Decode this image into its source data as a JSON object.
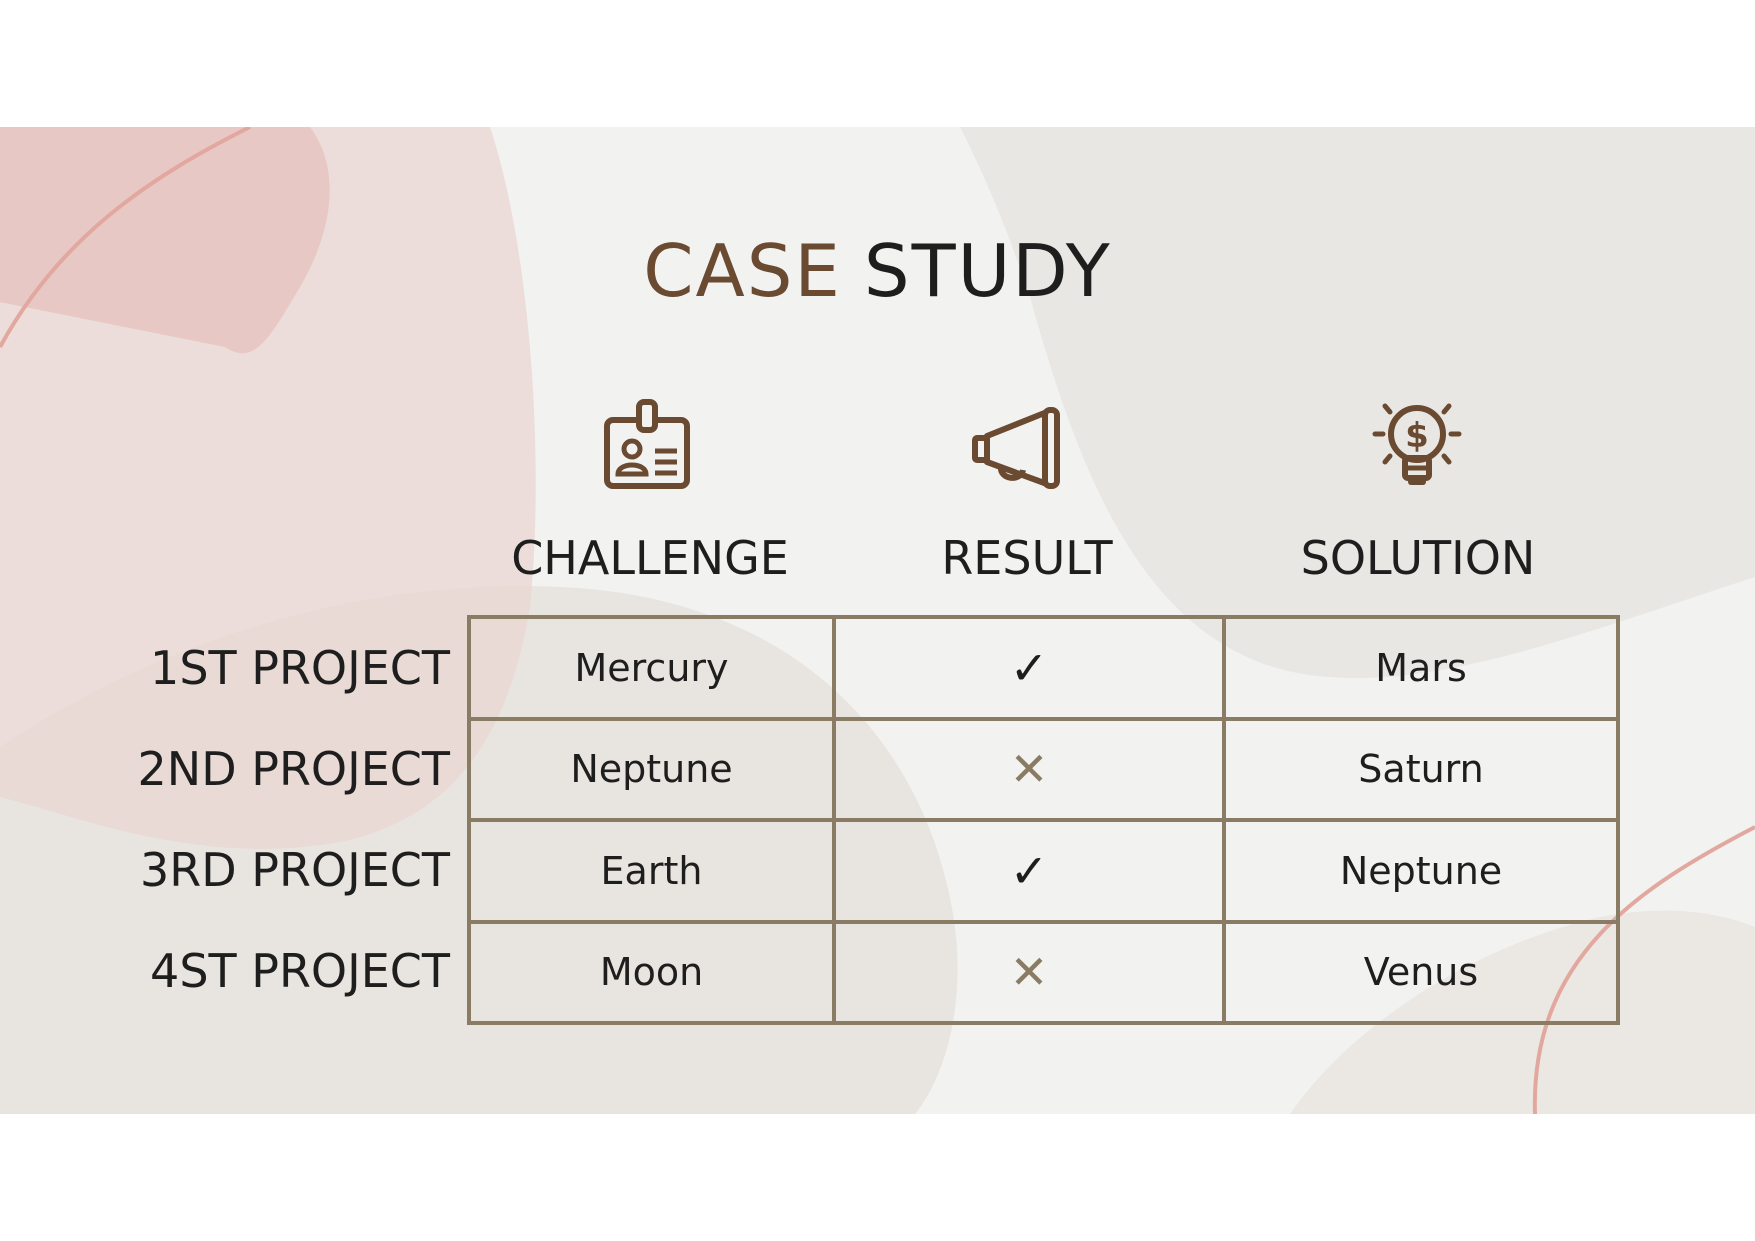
{
  "title": {
    "part1": "CASE",
    "part2": "STUDY"
  },
  "colors": {
    "accent_brown": "#6b4a32",
    "grid_line": "#8a7c64",
    "pink_shape": "#e9cfca",
    "pink_line": "#e2a89f",
    "beige_shape": "#e6e3de"
  },
  "columns": [
    {
      "icon": "id-badge-icon",
      "label": "CHALLENGE"
    },
    {
      "icon": "megaphone-icon",
      "label": "RESULT"
    },
    {
      "icon": "lightbulb-dollar-icon",
      "label": "SOLUTION"
    }
  ],
  "rows": [
    {
      "label": "1ST PROJECT",
      "challenge": "Mercury",
      "result": "check",
      "result_glyph": "✓",
      "solution": "Mars"
    },
    {
      "label": "2ND PROJECT",
      "challenge": "Neptune",
      "result": "cross",
      "result_glyph": "✕",
      "solution": "Saturn"
    },
    {
      "label": "3RD PROJECT",
      "challenge": "Earth",
      "result": "check",
      "result_glyph": "✓",
      "solution": "Neptune"
    },
    {
      "label": "4ST PROJECT",
      "challenge": "Moon",
      "result": "cross",
      "result_glyph": "✕",
      "solution": "Venus"
    }
  ]
}
